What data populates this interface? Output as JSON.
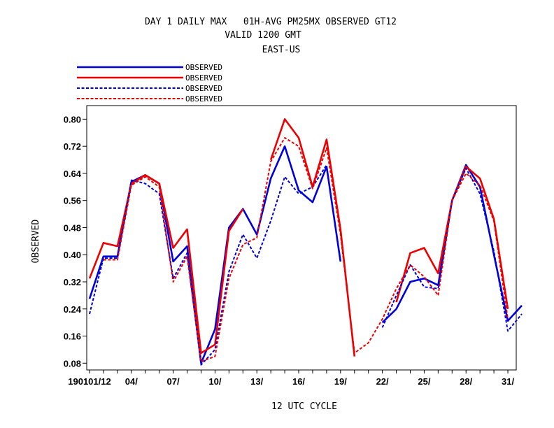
{
  "chart_data": {
    "type": "line",
    "title_lines": [
      "DAY 1 DAILY MAX   01H-AVG PM25MX OBSERVED GT12",
      "VALID 1200 GMT",
      "EAST-US"
    ],
    "xlabel": "12 UTC CYCLE",
    "ylabel": "OBSERVED",
    "ylim": [
      0.06,
      0.84
    ],
    "yticks": [
      0.08,
      0.16,
      0.24,
      0.32,
      0.4,
      0.48,
      0.56,
      0.64,
      0.72,
      0.8
    ],
    "ytick_labels": [
      "0.08",
      "0.16",
      "0.24",
      "0.32",
      "0.40",
      "0.48",
      "0.56",
      "0.64",
      "0.72",
      "0.80"
    ],
    "xlim": [
      0.8,
      31.6
    ],
    "xticks": [
      1,
      4,
      7,
      10,
      13,
      16,
      19,
      22,
      25,
      28,
      31
    ],
    "xtick_labels": [
      "190101/12",
      "04/",
      "07/",
      "10/",
      "13/",
      "16/",
      "19/",
      "22/",
      "25/",
      "28/",
      "31/"
    ],
    "grid": false,
    "legend_position": "top-left-above-plot",
    "series": [
      {
        "name": "OBSERVED",
        "color": "#0000dd",
        "dash": "solid",
        "values": [
          0.27,
          0.395,
          0.395,
          0.615,
          0.635,
          0.61,
          0.38,
          0.425,
          0.08,
          0.18,
          0.48,
          0.535,
          0.46,
          0.625,
          0.72,
          0.59,
          0.555,
          0.66,
          0.38,
          null,
          null,
          0.2,
          0.24,
          0.32,
          0.33,
          0.31,
          0.56,
          0.665,
          0.6,
          0.4,
          0.205,
          0.25
        ]
      },
      {
        "name": "OBSERVED",
        "color": "#ee0000",
        "dash": "solid",
        "values": [
          0.33,
          0.435,
          0.425,
          0.61,
          0.635,
          0.61,
          0.42,
          0.475,
          0.11,
          0.135,
          0.47,
          0.535,
          null,
          0.68,
          0.8,
          0.745,
          0.6,
          0.74,
          0.475,
          0.1,
          null,
          null,
          0.26,
          0.405,
          0.42,
          0.345,
          0.56,
          0.66,
          0.625,
          0.505,
          0.24,
          null
        ]
      },
      {
        "name": "OBSERVED",
        "color": "#0000dd",
        "dash": "dashed",
        "values": [
          0.225,
          0.39,
          0.39,
          0.62,
          0.61,
          0.58,
          0.33,
          0.405,
          0.075,
          0.12,
          0.35,
          0.46,
          0.39,
          0.5,
          0.63,
          0.58,
          0.6,
          0.665,
          null,
          null,
          null,
          0.185,
          0.28,
          0.37,
          0.305,
          0.3,
          0.56,
          0.655,
          0.58,
          0.41,
          0.175,
          0.225
        ]
      },
      {
        "name": "OBSERVED",
        "color": "#ee0000",
        "dash": "dashed",
        "values": [
          null,
          0.385,
          0.385,
          0.605,
          0.63,
          0.6,
          0.32,
          0.395,
          0.085,
          0.1,
          0.33,
          0.43,
          0.45,
          0.675,
          0.745,
          0.72,
          0.595,
          0.715,
          0.46,
          0.11,
          0.14,
          0.21,
          0.3,
          0.37,
          0.335,
          0.28,
          0.56,
          0.64,
          0.605,
          0.5,
          0.21,
          null
        ]
      }
    ]
  }
}
